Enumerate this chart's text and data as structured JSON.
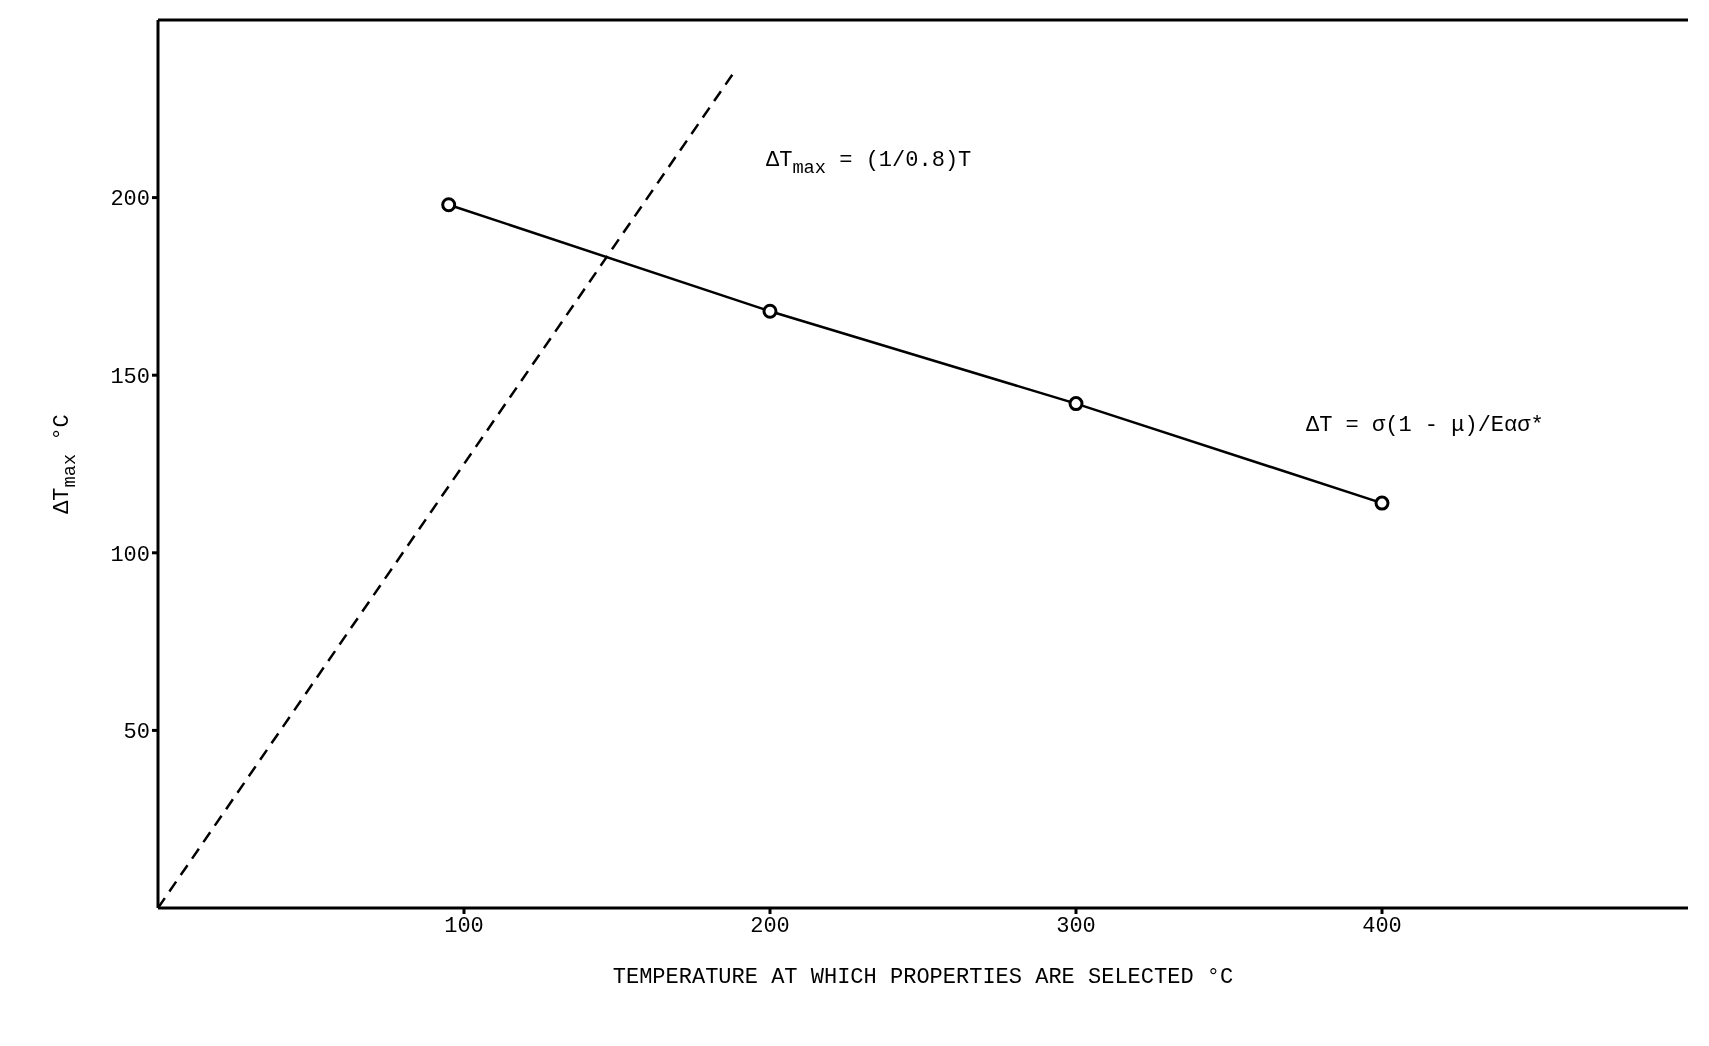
{
  "chart_data": {
    "type": "line",
    "xlabel": "TEMPERATURE AT WHICH PROPERTIES ARE SELECTED °C",
    "ylabel": "ΔT$_{max}$ °C",
    "xlim": [
      0,
      500
    ],
    "xticks": [
      100,
      200,
      300,
      400
    ],
    "ylim": [
      0,
      250
    ],
    "yticks": [
      50,
      100,
      150,
      200
    ],
    "series": [
      {
        "color": "#000000",
        "x": [
          95,
          200,
          300,
          400
        ],
        "values": [
          198,
          168,
          142,
          114
        ],
        "marker": "circle",
        "line_style": "solid"
      },
      {
        "color": "#000000",
        "x": [
          0,
          188
        ],
        "values": [
          0,
          235
        ],
        "marker": "none",
        "line_style": "dashed"
      }
    ],
    "annotations": [
      "ΔT$_{max}$ = (1/0.8)T",
      "ΔT = σ(1 - μ)/Eασ*"
    ]
  }
}
